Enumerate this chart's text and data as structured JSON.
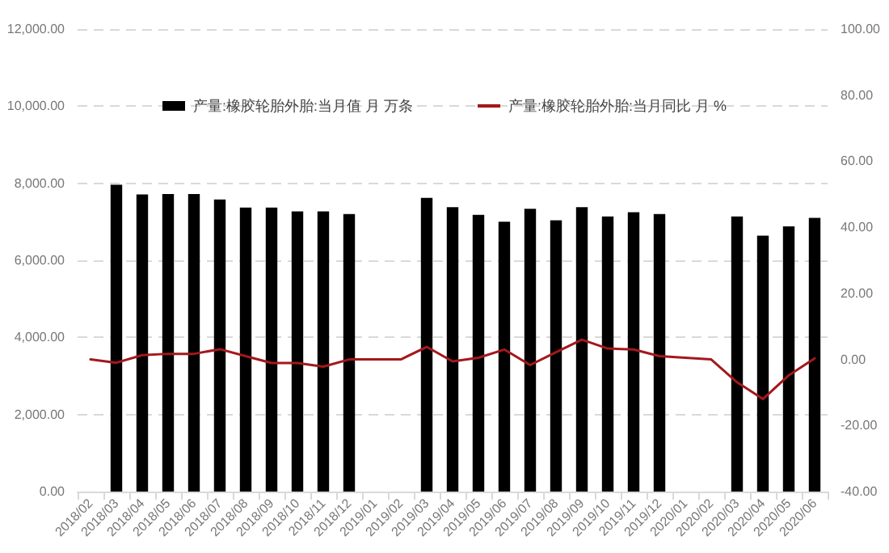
{
  "chart_data": {
    "type": "bar",
    "categories": [
      "2018/02",
      "2018/03",
      "2018/04",
      "2018/05",
      "2018/06",
      "2018/07",
      "2018/08",
      "2018/09",
      "2018/10",
      "2018/11",
      "2018/12",
      "2019/01",
      "2019/02",
      "2019/03",
      "2019/04",
      "2019/05",
      "2019/06",
      "2019/07",
      "2019/08",
      "2019/09",
      "2019/10",
      "2019/11",
      "2019/12",
      "2020/01",
      "2020/02",
      "2020/03",
      "2020/04",
      "2020/05",
      "2020/06"
    ],
    "series": [
      {
        "name": "产量:橡胶轮胎外胎:当月值 月 万条",
        "color": "#000000",
        "values": [
          null,
          7960,
          7710,
          7720,
          7720,
          7580,
          7370,
          7370,
          7270,
          7270,
          7200,
          null,
          null,
          7620,
          7380,
          7180,
          7000,
          7340,
          7040,
          7380,
          7140,
          7250,
          7200,
          null,
          null,
          7140,
          6640,
          6880,
          7100
        ]
      },
      {
        "name": "产量:橡胶轮胎外胎:当月同比 月 %",
        "type": "line",
        "axis": "y2",
        "color": "#a3181c",
        "values": [
          0,
          -1,
          1.3,
          1.7,
          1.7,
          3.1,
          1,
          -1.1,
          -1.1,
          -2.2,
          0,
          0,
          0,
          3.8,
          -0.6,
          0.5,
          3,
          -1.7,
          2.2,
          6,
          3.3,
          3,
          1,
          0.5,
          0,
          -6.9,
          -12,
          -4.8,
          0.3
        ]
      }
    ],
    "ylim": [
      0,
      12000
    ],
    "yticks": [
      {
        "value": 0,
        "label": "0.00"
      },
      {
        "value": 2000,
        "label": "2,000.00"
      },
      {
        "value": 4000,
        "label": "4,000.00"
      },
      {
        "value": 6000,
        "label": "6,000.00"
      },
      {
        "value": 8000,
        "label": "8,000.00"
      },
      {
        "value": 10000,
        "label": "10,000.00"
      },
      {
        "value": 12000,
        "label": "12,000.00"
      }
    ],
    "y2lim": [
      -40,
      100
    ],
    "y2ticks": [
      {
        "value": -40,
        "label": "-40.00"
      },
      {
        "value": -20,
        "label": "-20.00"
      },
      {
        "value": 0,
        "label": "0.00"
      },
      {
        "value": 20,
        "label": "20.00"
      },
      {
        "value": 40,
        "label": "40.00"
      },
      {
        "value": 60,
        "label": "60.00"
      },
      {
        "value": 80,
        "label": "80.00"
      },
      {
        "value": 100,
        "label": "100.00"
      }
    ],
    "grid": "y",
    "legend": "top",
    "marker": "none",
    "line_style": "solid"
  }
}
